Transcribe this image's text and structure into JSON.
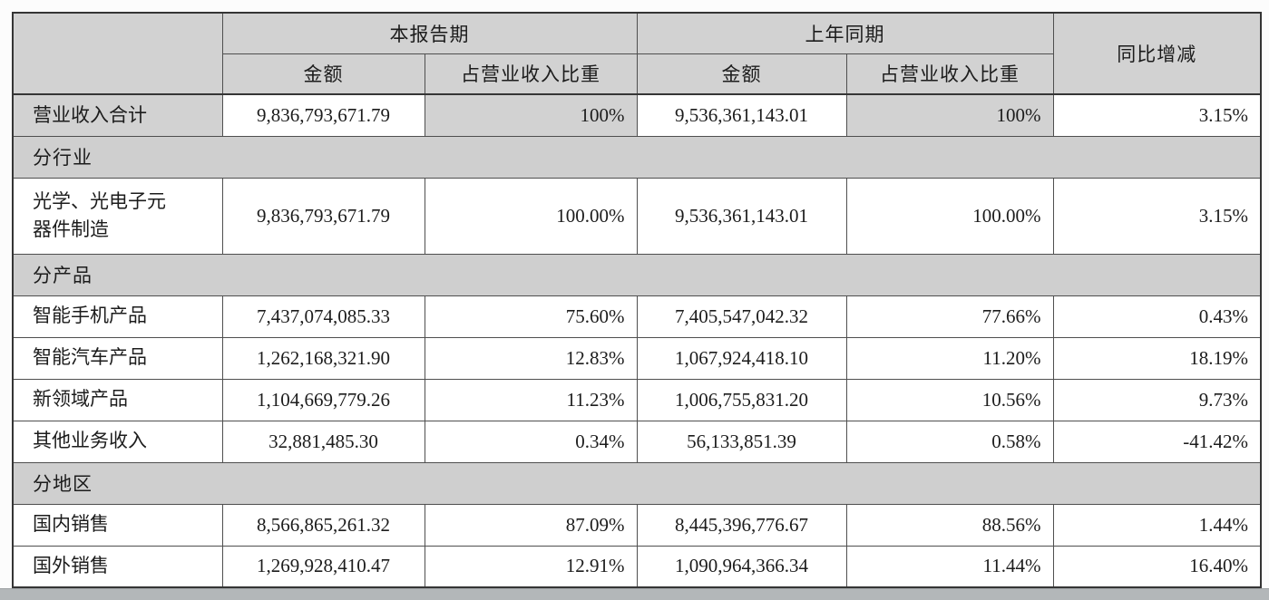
{
  "colors": {
    "page_bg": "#fcfcfc",
    "header_bg": "#d2d2d2",
    "section_bg": "#cfcfcf",
    "cell_bg": "#ffffff",
    "border": "#4f4f4f",
    "border_dark": "#353535",
    "text": "#1c1c1c",
    "strip": "#b3b7b9"
  },
  "table": {
    "column_headers": {
      "corner": "",
      "current_period": "本报告期",
      "prior_period": "上年同期",
      "yoy_change": "同比增减",
      "amount": "金额",
      "share_of_revenue": "占营业收入比重"
    },
    "rows": [
      {
        "type": "data",
        "emphasis": true,
        "label": "营业收入合计",
        "cells": [
          "9,836,793,671.79",
          "100%",
          "9,536,361,143.01",
          "100%",
          "3.15%"
        ]
      },
      {
        "type": "section",
        "label": "分行业"
      },
      {
        "type": "data",
        "tall": true,
        "label": "光学、光电子元\n器件制造",
        "cells": [
          "9,836,793,671.79",
          "100.00%",
          "9,536,361,143.01",
          "100.00%",
          "3.15%"
        ]
      },
      {
        "type": "section",
        "label": "分产品"
      },
      {
        "type": "data",
        "label": "智能手机产品",
        "cells": [
          "7,437,074,085.33",
          "75.60%",
          "7,405,547,042.32",
          "77.66%",
          "0.43%"
        ]
      },
      {
        "type": "data",
        "label": "智能汽车产品",
        "cells": [
          "1,262,168,321.90",
          "12.83%",
          "1,067,924,418.10",
          "11.20%",
          "18.19%"
        ]
      },
      {
        "type": "data",
        "label": "新领域产品",
        "cells": [
          "1,104,669,779.26",
          "11.23%",
          "1,006,755,831.20",
          "10.56%",
          "9.73%"
        ]
      },
      {
        "type": "data",
        "label": "其他业务收入",
        "cells": [
          "32,881,485.30",
          "0.34%",
          "56,133,851.39",
          "0.58%",
          "-41.42%"
        ]
      },
      {
        "type": "section",
        "label": "分地区"
      },
      {
        "type": "data",
        "label": "国内销售",
        "cells": [
          "8,566,865,261.32",
          "87.09%",
          "8,445,396,776.67",
          "88.56%",
          "1.44%"
        ]
      },
      {
        "type": "data",
        "label": "国外销售",
        "cells": [
          "1,269,928,410.47",
          "12.91%",
          "1,090,964,366.34",
          "11.44%",
          "16.40%"
        ]
      }
    ]
  }
}
